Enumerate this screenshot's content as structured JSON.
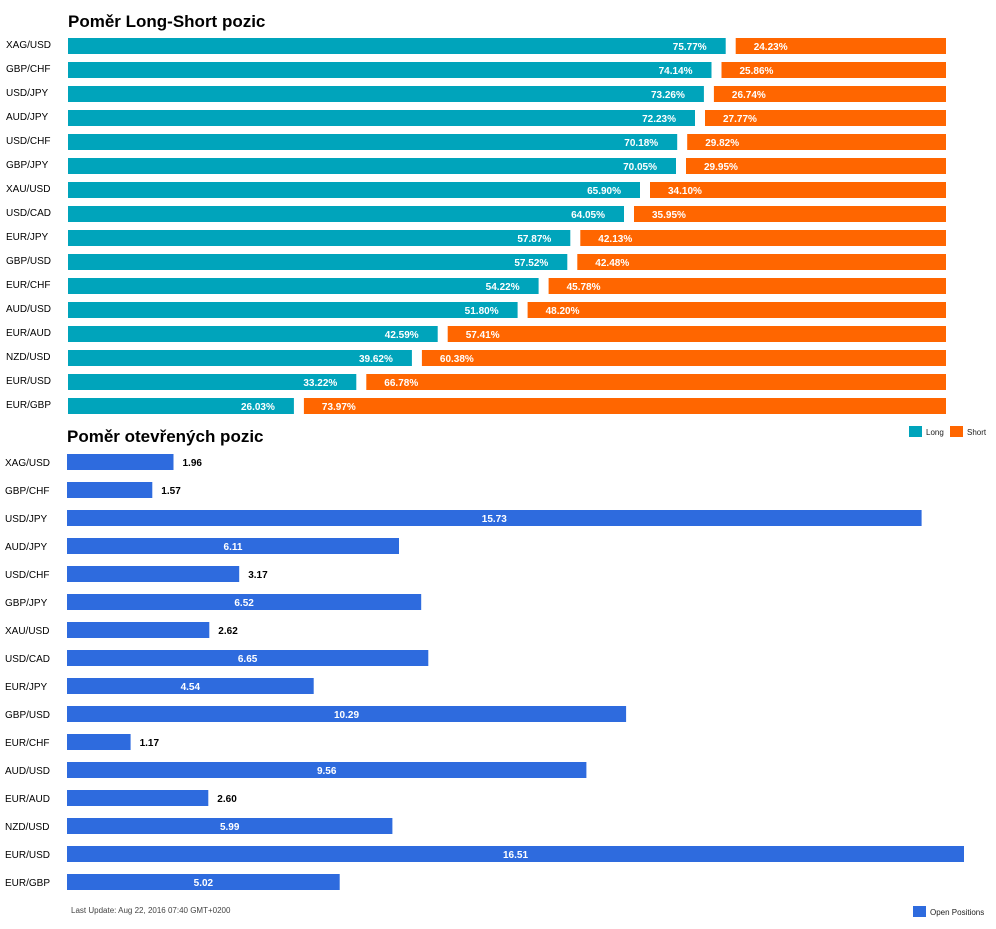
{
  "colors": {
    "long": "#00a4bb",
    "short": "#ff6600",
    "open": "#2e6bde"
  },
  "chart_data": [
    {
      "type": "bar",
      "orientation": "horizontal",
      "stacked": true,
      "title": "Poměr Long-Short pozic",
      "categories": [
        "XAG/USD",
        "GBP/CHF",
        "USD/JPY",
        "AUD/JPY",
        "USD/CHF",
        "GBP/JPY",
        "XAU/USD",
        "USD/CAD",
        "EUR/JPY",
        "GBP/USD",
        "EUR/CHF",
        "AUD/USD",
        "EUR/AUD",
        "NZD/USD",
        "EUR/USD",
        "EUR/GBP"
      ],
      "series": [
        {
          "name": "Long",
          "values": [
            75.77,
            74.14,
            73.26,
            72.23,
            70.18,
            70.05,
            65.9,
            64.05,
            57.87,
            57.52,
            54.22,
            51.8,
            42.59,
            39.62,
            33.22,
            26.03
          ],
          "labels": [
            "75.77%",
            "74.14%",
            "73.26%",
            "72.23%",
            "70.18%",
            "70.05%",
            "65.90%",
            "64.05%",
            "57.87%",
            "57.52%",
            "54.22%",
            "51.80%",
            "42.59%",
            "39.62%",
            "33.22%",
            "26.03%"
          ]
        },
        {
          "name": "Short",
          "values": [
            24.23,
            25.86,
            26.74,
            27.77,
            29.82,
            29.95,
            34.1,
            35.95,
            42.13,
            42.48,
            45.78,
            48.2,
            57.41,
            60.38,
            66.78,
            73.97
          ],
          "labels": [
            "24.23%",
            "25.86%",
            "26.74%",
            "27.77%",
            "29.82%",
            "29.95%",
            "34.10%",
            "35.95%",
            "42.13%",
            "42.48%",
            "45.78%",
            "48.20%",
            "57.41%",
            "60.38%",
            "66.78%",
            "73.97%"
          ]
        }
      ],
      "xlim": [
        0,
        100
      ],
      "legend": "bottom-right"
    },
    {
      "type": "bar",
      "orientation": "horizontal",
      "title": "Poměr otevřených pozic",
      "categories": [
        "XAG/USD",
        "GBP/CHF",
        "USD/JPY",
        "AUD/JPY",
        "USD/CHF",
        "GBP/JPY",
        "XAU/USD",
        "USD/CAD",
        "EUR/JPY",
        "GBP/USD",
        "EUR/CHF",
        "AUD/USD",
        "EUR/AUD",
        "NZD/USD",
        "EUR/USD",
        "EUR/GBP"
      ],
      "series": [
        {
          "name": "Open Positions",
          "values": [
            1.96,
            1.57,
            15.73,
            6.11,
            3.17,
            6.52,
            2.62,
            6.65,
            4.54,
            10.29,
            1.17,
            9.56,
            2.6,
            5.99,
            16.51,
            5.02
          ],
          "labels": [
            "1.96",
            "1.57",
            "15.73",
            "6.11",
            "3.17",
            "6.52",
            "2.62",
            "6.65",
            "4.54",
            "10.29",
            "1.17",
            "9.56",
            "2.60",
            "5.99",
            "16.51",
            "5.02"
          ]
        }
      ],
      "xlim": [
        0,
        16.51
      ],
      "legend": "bottom-right"
    }
  ],
  "footer": {
    "last_update": "Last Update: Aug 22, 2016 07:40 GMT+0200"
  }
}
